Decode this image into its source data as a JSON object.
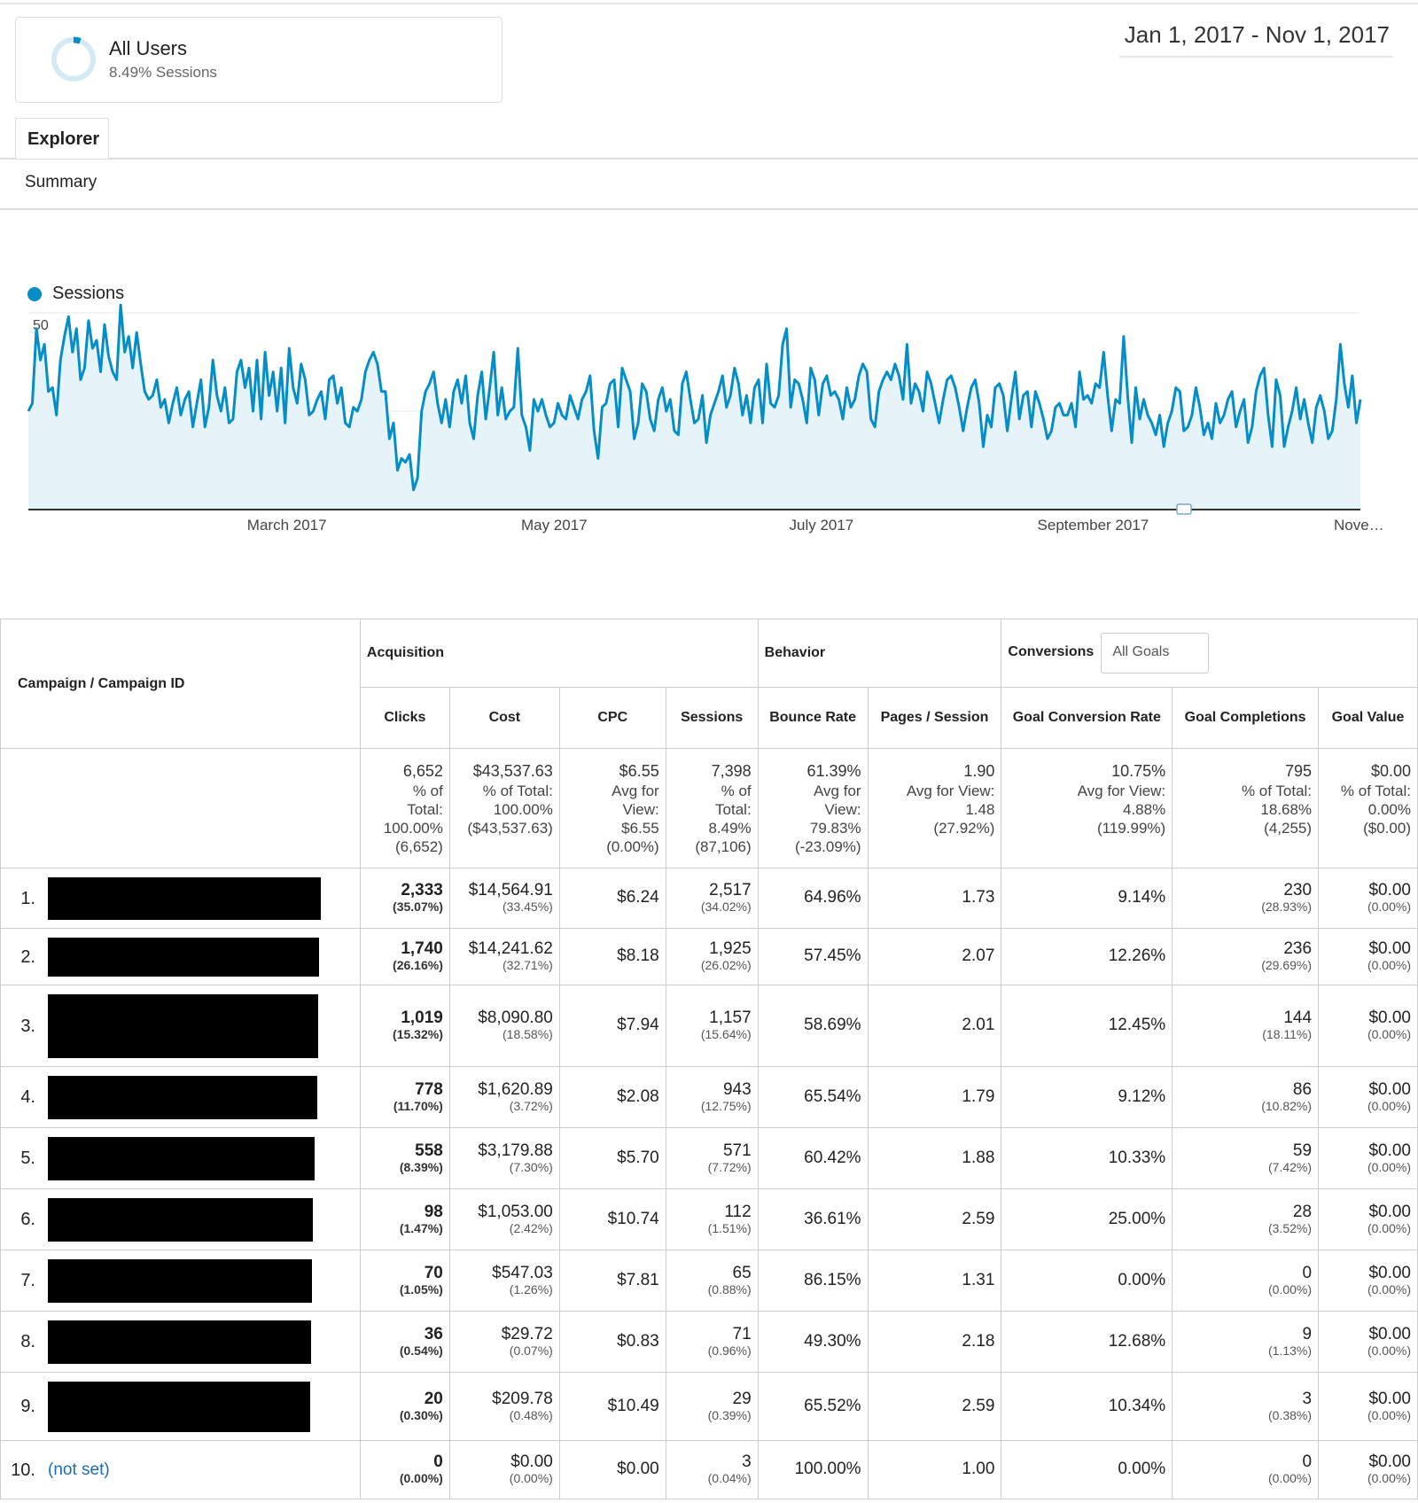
{
  "segment": {
    "title": "All Users",
    "subtitle": "8.49% Sessions"
  },
  "date_range": "Jan 1, 2017 - Nov 1, 2017",
  "tabs": [
    {
      "label": "Explorer"
    }
  ],
  "subtab": "Summary",
  "colors": {
    "accent": "#058dc7",
    "fill": "#e6f4fa"
  },
  "chart_data": {
    "type": "area",
    "title": "",
    "legend": [
      "Sessions"
    ],
    "legend_position": "top-left",
    "xlabel": "",
    "ylabel": "",
    "ylim": [
      0,
      50
    ],
    "yticks": [
      25,
      50
    ],
    "xtick_labels": [
      "March 2017",
      "May 2017",
      "July 2017",
      "September 2017",
      "Nove…"
    ],
    "xtick_positions": [
      59,
      120,
      181,
      243,
      304
    ],
    "x_range": [
      "2017-01-01",
      "2017-11-01"
    ],
    "series": [
      {
        "name": "Sessions",
        "values": [
          25,
          27,
          46,
          38,
          42,
          30,
          31,
          24,
          38,
          44,
          49,
          40,
          46,
          33,
          36,
          48,
          41,
          43,
          35,
          47,
          39,
          35,
          33,
          52,
          40,
          44,
          36,
          45,
          37,
          30,
          28,
          29,
          33,
          26,
          28,
          22,
          27,
          31,
          24,
          28,
          30,
          21,
          27,
          33,
          21,
          26,
          38,
          29,
          25,
          31,
          22,
          23,
          35,
          38,
          31,
          36,
          25,
          38,
          23,
          40,
          29,
          35,
          25,
          36,
          22,
          41,
          31,
          27,
          37,
          33,
          24,
          25,
          28,
          30,
          23,
          33,
          34,
          27,
          31,
          22,
          21,
          26,
          25,
          28,
          35,
          38,
          40,
          37,
          30,
          30,
          18,
          22,
          10,
          13,
          12,
          14,
          5,
          8,
          25,
          30,
          32,
          35,
          27,
          22,
          28,
          21,
          30,
          33,
          27,
          34,
          22,
          18,
          29,
          35,
          23,
          31,
          40,
          24,
          31,
          23,
          25,
          26,
          41,
          24,
          21,
          15,
          28,
          25,
          28,
          24,
          21,
          22,
          27,
          24,
          23,
          29,
          26,
          23,
          28,
          30,
          34,
          20,
          13,
          26,
          27,
          32,
          33,
          21,
          36,
          33,
          30,
          18,
          22,
          32,
          30,
          23,
          20,
          28,
          31,
          25,
          28,
          20,
          19,
          32,
          35,
          28,
          22,
          23,
          29,
          17,
          24,
          27,
          30,
          34,
          26,
          29,
          36,
          32,
          24,
          29,
          22,
          31,
          33,
          22,
          37,
          27,
          26,
          29,
          42,
          46,
          26,
          33,
          32,
          28,
          22,
          36,
          33,
          24,
          32,
          34,
          29,
          30,
          28,
          23,
          31,
          26,
          28,
          34,
          37,
          35,
          23,
          21,
          30,
          33,
          35,
          33,
          37,
          34,
          28,
          42,
          27,
          32,
          30,
          25,
          35,
          32,
          27,
          22,
          28,
          33,
          34,
          31,
          26,
          20,
          26,
          31,
          33,
          27,
          16,
          24,
          21,
          31,
          32,
          29,
          20,
          28,
          35,
          23,
          29,
          30,
          21,
          30,
          27,
          23,
          18,
          20,
          26,
          27,
          24,
          24,
          27,
          21,
          35,
          28,
          29,
          27,
          32,
          31,
          40,
          29,
          20,
          28,
          27,
          44,
          29,
          17,
          31,
          23,
          28,
          24,
          22,
          19,
          24,
          16,
          22,
          25,
          31,
          30,
          20,
          21,
          24,
          31,
          26,
          19,
          22,
          18,
          27,
          22,
          24,
          28,
          30,
          21,
          25,
          28,
          17,
          21,
          30,
          34,
          36,
          24,
          16,
          33,
          29,
          16,
          21,
          25,
          31,
          23,
          28,
          22,
          17,
          26,
          29,
          25,
          18,
          20,
          28,
          42,
          32,
          26,
          34,
          22,
          28
        ]
      }
    ]
  },
  "table": {
    "dimension_header": "Campaign / Campaign ID",
    "groups": [
      "Acquisition",
      "Behavior",
      "Conversions"
    ],
    "goals_select": "All Goals",
    "columns": [
      "Clicks",
      "Cost",
      "CPC",
      "Sessions",
      "Bounce Rate",
      "Pages / Session",
      "Goal Conversion Rate",
      "Goal Completions",
      "Goal Value"
    ],
    "totals": [
      [
        "6,652",
        "% of",
        "Total:",
        "100.00%",
        "(6,652)"
      ],
      [
        "$43,537.63",
        "% of Total:",
        "100.00%",
        "($43,537.63)",
        ""
      ],
      [
        "$6.55",
        "Avg for",
        "View:",
        "$6.55",
        "(0.00%)"
      ],
      [
        "7,398",
        "% of",
        "Total:",
        "8.49%",
        "(87,106)"
      ],
      [
        "61.39%",
        "Avg for",
        "View:",
        "79.83%",
        "(-23.09%)"
      ],
      [
        "1.90",
        "Avg for View:",
        "1.48",
        "(27.92%)",
        ""
      ],
      [
        "10.75%",
        "Avg for View:",
        "4.88%",
        "(119.99%)",
        ""
      ],
      [
        "795",
        "% of Total:",
        "18.68%",
        "(4,255)",
        ""
      ],
      [
        "$0.00",
        "% of Total:",
        "0.00%",
        "($0.00)",
        ""
      ]
    ],
    "rows": [
      {
        "index": "1.",
        "name": "",
        "clicks": "2,333",
        "clicks_pct": "(35.07%)",
        "cost": "$14,564.91",
        "cost_pct": "(33.45%)",
        "cpc": "$6.24",
        "sessions": "2,517",
        "sessions_pct": "(34.02%)",
        "bounce": "64.96%",
        "pages": "1.73",
        "gcr": "9.14%",
        "gc": "230",
        "gc_pct": "(28.93%)",
        "gv": "$0.00",
        "gv_pct": "(0.00%)"
      },
      {
        "index": "2.",
        "name": "",
        "clicks": "1,740",
        "clicks_pct": "(26.16%)",
        "cost": "$14,241.62",
        "cost_pct": "(32.71%)",
        "cpc": "$8.18",
        "sessions": "1,925",
        "sessions_pct": "(26.02%)",
        "bounce": "57.45%",
        "pages": "2.07",
        "gcr": "12.26%",
        "gc": "236",
        "gc_pct": "(29.69%)",
        "gv": "$0.00",
        "gv_pct": "(0.00%)"
      },
      {
        "index": "3.",
        "name": "",
        "clicks": "1,019",
        "clicks_pct": "(15.32%)",
        "cost": "$8,090.80",
        "cost_pct": "(18.58%)",
        "cpc": "$7.94",
        "sessions": "1,157",
        "sessions_pct": "(15.64%)",
        "bounce": "58.69%",
        "pages": "2.01",
        "gcr": "12.45%",
        "gc": "144",
        "gc_pct": "(18.11%)",
        "gv": "$0.00",
        "gv_pct": "(0.00%)"
      },
      {
        "index": "4.",
        "name": "",
        "clicks": "778",
        "clicks_pct": "(11.70%)",
        "cost": "$1,620.89",
        "cost_pct": "(3.72%)",
        "cpc": "$2.08",
        "sessions": "943",
        "sessions_pct": "(12.75%)",
        "bounce": "65.54%",
        "pages": "1.79",
        "gcr": "9.12%",
        "gc": "86",
        "gc_pct": "(10.82%)",
        "gv": "$0.00",
        "gv_pct": "(0.00%)"
      },
      {
        "index": "5.",
        "name": "",
        "clicks": "558",
        "clicks_pct": "(8.39%)",
        "cost": "$3,179.88",
        "cost_pct": "(7.30%)",
        "cpc": "$5.70",
        "sessions": "571",
        "sessions_pct": "(7.72%)",
        "bounce": "60.42%",
        "pages": "1.88",
        "gcr": "10.33%",
        "gc": "59",
        "gc_pct": "(7.42%)",
        "gv": "$0.00",
        "gv_pct": "(0.00%)"
      },
      {
        "index": "6.",
        "name": "",
        "clicks": "98",
        "clicks_pct": "(1.47%)",
        "cost": "$1,053.00",
        "cost_pct": "(2.42%)",
        "cpc": "$10.74",
        "sessions": "112",
        "sessions_pct": "(1.51%)",
        "bounce": "36.61%",
        "pages": "2.59",
        "gcr": "25.00%",
        "gc": "28",
        "gc_pct": "(3.52%)",
        "gv": "$0.00",
        "gv_pct": "(0.00%)"
      },
      {
        "index": "7.",
        "name": "",
        "clicks": "70",
        "clicks_pct": "(1.05%)",
        "cost": "$547.03",
        "cost_pct": "(1.26%)",
        "cpc": "$7.81",
        "sessions": "65",
        "sessions_pct": "(0.88%)",
        "bounce": "86.15%",
        "pages": "1.31",
        "gcr": "0.00%",
        "gc": "0",
        "gc_pct": "(0.00%)",
        "gv": "$0.00",
        "gv_pct": "(0.00%)"
      },
      {
        "index": "8.",
        "name": "",
        "clicks": "36",
        "clicks_pct": "(0.54%)",
        "cost": "$29.72",
        "cost_pct": "(0.07%)",
        "cpc": "$0.83",
        "sessions": "71",
        "sessions_pct": "(0.96%)",
        "bounce": "49.30%",
        "pages": "2.18",
        "gcr": "12.68%",
        "gc": "9",
        "gc_pct": "(1.13%)",
        "gv": "$0.00",
        "gv_pct": "(0.00%)"
      },
      {
        "index": "9.",
        "name": "",
        "clicks": "20",
        "clicks_pct": "(0.30%)",
        "cost": "$209.78",
        "cost_pct": "(0.48%)",
        "cpc": "$10.49",
        "sessions": "29",
        "sessions_pct": "(0.39%)",
        "bounce": "65.52%",
        "pages": "2.59",
        "gcr": "10.34%",
        "gc": "3",
        "gc_pct": "(0.38%)",
        "gv": "$0.00",
        "gv_pct": "(0.00%)"
      },
      {
        "index": "10.",
        "name": "(not set)",
        "clicks": "0",
        "clicks_pct": "(0.00%)",
        "cost": "$0.00",
        "cost_pct": "(0.00%)",
        "cpc": "$0.00",
        "sessions": "3",
        "sessions_pct": "(0.04%)",
        "bounce": "100.00%",
        "pages": "1.00",
        "gcr": "0.00%",
        "gc": "0",
        "gc_pct": "(0.00%)",
        "gv": "$0.00",
        "gv_pct": "(0.00%)"
      }
    ]
  }
}
